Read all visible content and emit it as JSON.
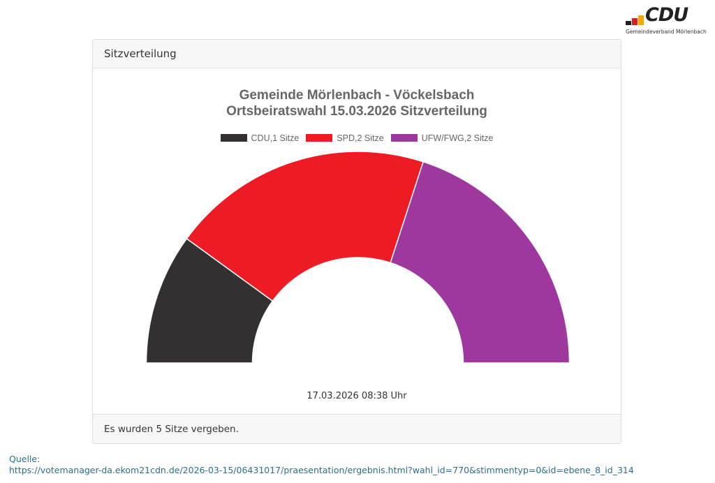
{
  "logo": {
    "text": "CDU",
    "subtitle": "Gemeindeverband Mörlenbach",
    "bar_colors": [
      "#222222",
      "#d81e1e",
      "#f5a800"
    ]
  },
  "card": {
    "header": "Sitzverteilung",
    "footer": "Es wurden 5 Sitze vergeben.",
    "timestamp": "17.03.2026 08:38 Uhr"
  },
  "chart_data": {
    "type": "pie",
    "variant": "half-donut",
    "title": "Gemeinde Mörlenbach - Vöckelsbach",
    "subtitle": "Ortsbeiratswahl 15.03.2026 Sitzverteilung",
    "categories": [
      "CDU",
      "SPD",
      "UFW/FWG"
    ],
    "values": [
      1,
      2,
      2
    ],
    "colors": [
      "#323031",
      "#ed1c24",
      "#9e379e"
    ],
    "legend": [
      "CDU,1 Sitze",
      "SPD,2 Sitze",
      "UFW/FWG,2 Sitze"
    ],
    "legend_position": "top",
    "total": 5
  },
  "source": {
    "label": "Quelle:",
    "url": "https://votemanager-da.ekom21cdn.de/2026-03-15/06431017/praesentation/ergebnis.html?wahl_id=770&stimmentyp=0&id=ebene_8_id_314"
  }
}
